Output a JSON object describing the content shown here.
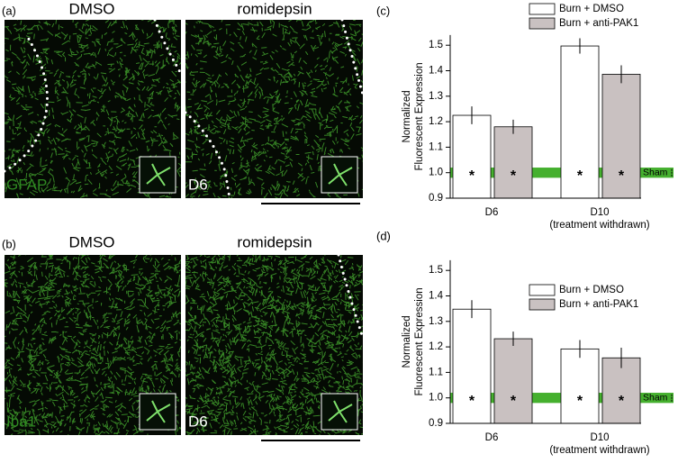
{
  "panels": [
    {
      "label": "(a)",
      "columns": [
        "DMSO",
        "romidepsin"
      ],
      "stain": "GFAP",
      "day": "D6"
    },
    {
      "label": "(b)",
      "columns": [
        "DMSO",
        "romidepsin"
      ],
      "stain": "Iba1",
      "day": "D6"
    }
  ],
  "chart_data": [
    {
      "type": "bar",
      "panel": "(c)",
      "ylabel": [
        "Normalized",
        "Fluorescent Expression"
      ],
      "categories": [
        "D6",
        "D10"
      ],
      "category_notes": [
        null,
        "(treatment withdrawn)"
      ],
      "series": [
        {
          "name": "Burn + DMSO",
          "color": "#ffffff",
          "values": [
            1.225,
            1.497
          ],
          "errors": [
            0.035,
            0.03
          ],
          "annotations": [
            "*",
            "*"
          ]
        },
        {
          "name": "Burn + anti-PAK1",
          "color": "#c9c1c1",
          "values": [
            1.18,
            1.386
          ],
          "errors": [
            0.028,
            0.035
          ],
          "annotations": [
            "*",
            "*"
          ]
        }
      ],
      "ylim": [
        0.9,
        1.54
      ],
      "yticks": [
        0.9,
        {
          "value": 1,
          "label": "1.0"
        },
        1.1,
        1.2,
        1.3,
        1.4,
        1.5
      ],
      "reference": {
        "label": "Sham",
        "value": 1,
        "error": 0.02,
        "color": "#45b02e"
      },
      "legend": "above"
    },
    {
      "type": "bar",
      "panel": "(d)",
      "ylabel": [
        "Normalized",
        "Fluorescent Expression"
      ],
      "categories": [
        "D6",
        "D10"
      ],
      "category_notes": [
        null,
        "(treatment withdrawn)"
      ],
      "series": [
        {
          "name": "Burn + DMSO",
          "color": "#ffffff",
          "values": [
            1.348,
            1.192
          ],
          "errors": [
            0.035,
            0.035
          ],
          "annotations": [
            "*",
            "*"
          ]
        },
        {
          "name": "Burn + anti-PAK1",
          "color": "#c9c1c1",
          "values": [
            1.232,
            1.157
          ],
          "errors": [
            0.028,
            0.04
          ],
          "annotations": [
            "*",
            "*"
          ]
        }
      ],
      "ylim": [
        0.9,
        1.54
      ],
      "yticks": [
        0.9,
        {
          "value": 1,
          "label": "1.0"
        },
        1.1,
        1.2,
        1.3,
        1.4,
        1.5
      ],
      "reference": {
        "label": "Sham",
        "value": 1,
        "error": 0.02,
        "color": "#45b02e"
      },
      "legend": "upper right"
    }
  ]
}
